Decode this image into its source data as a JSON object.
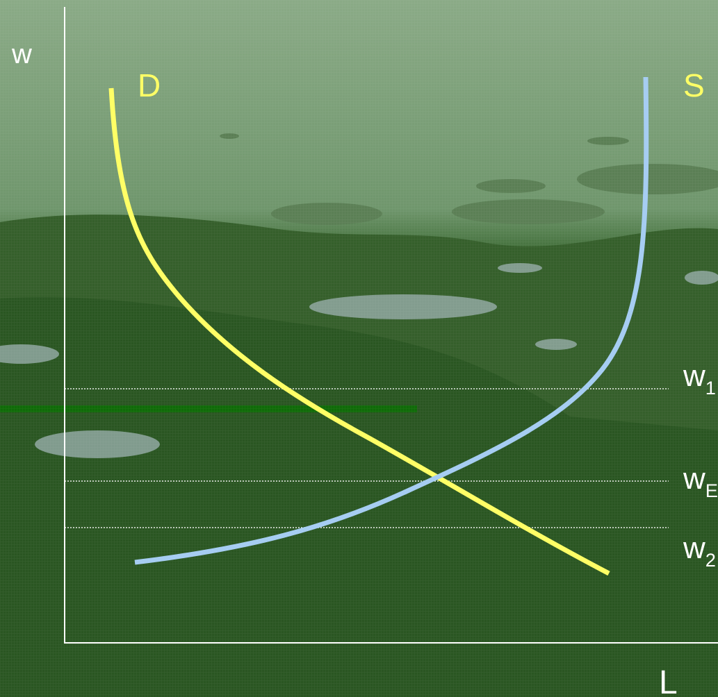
{
  "colors": {
    "demand": "#ffff66",
    "supply": "#a6cdf2",
    "axis": "#ffffff",
    "guide": "#ffffff"
  },
  "axes": {
    "y_label": "w",
    "x_label": "L"
  },
  "curves": {
    "demand_label": "D",
    "supply_label": "S"
  },
  "levels": [
    {
      "name": "w1",
      "base": "w",
      "sub": "1"
    },
    {
      "name": "wE",
      "base": "w",
      "sub": "E"
    },
    {
      "name": "w2",
      "base": "w",
      "sub": "2"
    }
  ]
}
